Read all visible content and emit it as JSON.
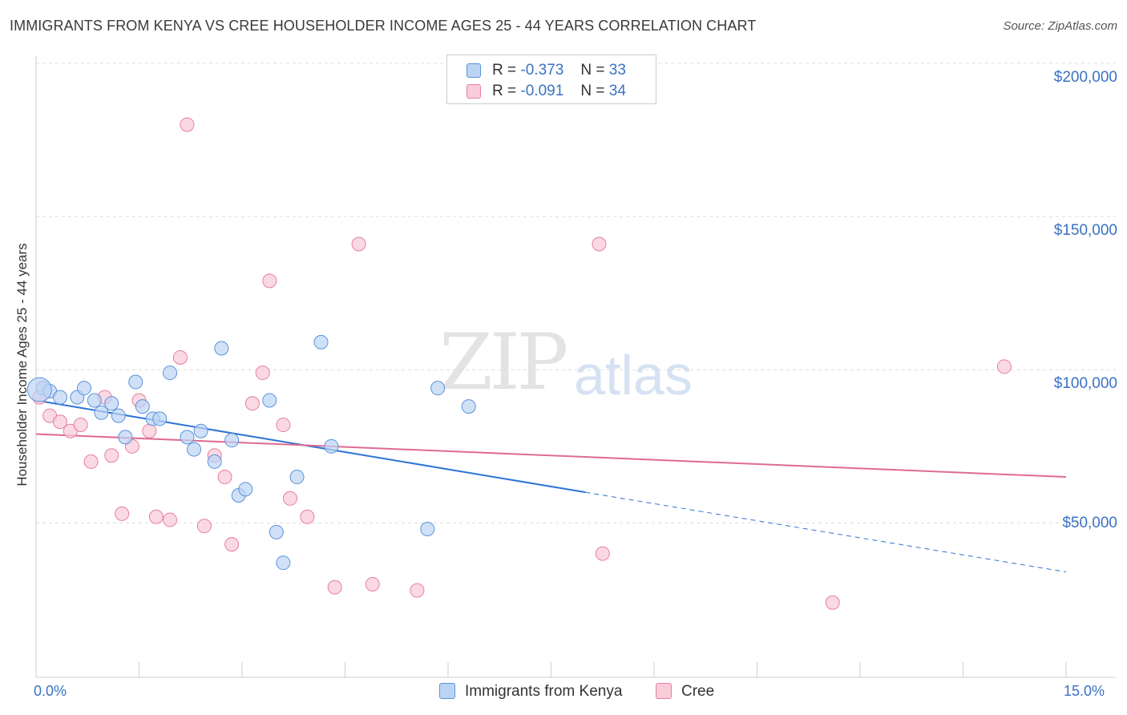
{
  "title": "IMMIGRANTS FROM KENYA VS CREE HOUSEHOLDER INCOME AGES 25 - 44 YEARS CORRELATION CHART",
  "source": "Source: ZipAtlas.com",
  "watermark": {
    "zip": "ZIP",
    "atlas": "atlas"
  },
  "colors": {
    "kenya": "#5b93dd",
    "kenya_fill": "#bcd4f3",
    "cree": "#e67fa1",
    "cree_fill": "#f8ccd9",
    "axis_text": "#3a72c4"
  },
  "stats": [
    {
      "r_label": "R =",
      "r_value": "-0.373",
      "n_label": "N =",
      "n_value": "33"
    },
    {
      "r_label": "R =",
      "r_value": "-0.091",
      "n_label": "N =",
      "n_value": "34"
    }
  ],
  "legend": {
    "kenya": "Immigrants from Kenya",
    "cree": "Cree"
  },
  "chart_data": {
    "type": "scatter",
    "title": "IMMIGRANTS FROM KENYA VS CREE HOUSEHOLDER INCOME AGES 25 - 44 YEARS CORRELATION CHART",
    "xlabel": "",
    "ylabel": "Householder Income Ages 25 - 44 years",
    "xlim": [
      0,
      15
    ],
    "ylim": [
      0,
      205000
    ],
    "x_tick_labels": [
      "0.0%",
      "15.0%"
    ],
    "y_tick_labels": [
      "$50,000",
      "$100,000",
      "$150,000",
      "$200,000"
    ],
    "y_ticks": [
      50000,
      100000,
      150000,
      200000
    ],
    "series": [
      {
        "name": "Immigrants from Kenya",
        "color": "#5b93dd",
        "points": [
          [
            0.1,
            94000
          ],
          [
            0.2,
            93000
          ],
          [
            0.35,
            91000
          ],
          [
            0.6,
            91000
          ],
          [
            0.7,
            94000
          ],
          [
            0.85,
            90000
          ],
          [
            0.95,
            86000
          ],
          [
            1.1,
            89000
          ],
          [
            1.2,
            85000
          ],
          [
            1.3,
            78000
          ],
          [
            1.45,
            96000
          ],
          [
            1.55,
            88000
          ],
          [
            1.7,
            84000
          ],
          [
            1.8,
            84000
          ],
          [
            1.95,
            99000
          ],
          [
            2.2,
            78000
          ],
          [
            2.3,
            74000
          ],
          [
            2.4,
            80000
          ],
          [
            2.6,
            70000
          ],
          [
            2.7,
            107000
          ],
          [
            2.85,
            77000
          ],
          [
            2.95,
            59000
          ],
          [
            3.05,
            61000
          ],
          [
            3.4,
            90000
          ],
          [
            3.5,
            47000
          ],
          [
            3.6,
            37000
          ],
          [
            3.8,
            65000
          ],
          [
            4.15,
            109000
          ],
          [
            4.3,
            75000
          ],
          [
            5.7,
            48000
          ],
          [
            5.85,
            94000
          ],
          [
            6.3,
            88000
          ],
          [
            0.05,
            93500
          ]
        ],
        "trend": {
          "x0": 0,
          "y0": 90000,
          "x1": 8.0,
          "y1": 60000,
          "dashed_to_x": 15,
          "dashed_to_y": 34000
        }
      },
      {
        "name": "Cree",
        "color": "#e67fa1",
        "points": [
          [
            0.05,
            91000
          ],
          [
            0.2,
            85000
          ],
          [
            0.35,
            83000
          ],
          [
            0.5,
            80000
          ],
          [
            0.65,
            82000
          ],
          [
            0.8,
            70000
          ],
          [
            1.0,
            91000
          ],
          [
            1.1,
            72000
          ],
          [
            1.25,
            53000
          ],
          [
            1.4,
            75000
          ],
          [
            1.5,
            90000
          ],
          [
            1.65,
            80000
          ],
          [
            1.75,
            52000
          ],
          [
            1.95,
            51000
          ],
          [
            2.1,
            104000
          ],
          [
            2.2,
            180000
          ],
          [
            2.45,
            49000
          ],
          [
            2.6,
            72000
          ],
          [
            2.75,
            65000
          ],
          [
            2.85,
            43000
          ],
          [
            3.15,
            89000
          ],
          [
            3.3,
            99000
          ],
          [
            3.4,
            129000
          ],
          [
            3.6,
            82000
          ],
          [
            3.7,
            58000
          ],
          [
            3.95,
            52000
          ],
          [
            4.35,
            29000
          ],
          [
            4.7,
            141000
          ],
          [
            4.9,
            30000
          ],
          [
            5.55,
            28000
          ],
          [
            8.2,
            141000
          ],
          [
            8.25,
            40000
          ],
          [
            11.6,
            24000
          ],
          [
            14.1,
            101000
          ]
        ],
        "trend": {
          "x0": 0,
          "y0": 79000,
          "x1": 15,
          "y1": 65000
        }
      }
    ]
  }
}
